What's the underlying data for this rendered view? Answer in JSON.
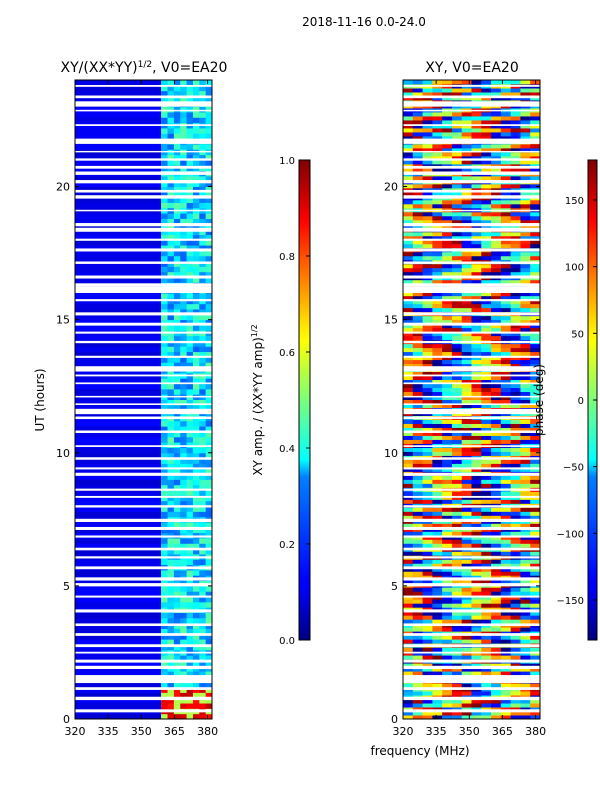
{
  "figure": {
    "suptitle": "2018-11-16 0.0-24.0",
    "shared_xlabel": "frequency (MHz)"
  },
  "chart_data": [
    {
      "type": "heatmap",
      "title_main": "XY/(XX*YY)",
      "title_exp": "1/2",
      "title_suffix": ", V0=EA20",
      "xlabel": "",
      "ylabel": "UT (hours)",
      "xlim": [
        320,
        382
      ],
      "ylim": [
        0,
        24
      ],
      "xticks": [
        "320",
        "335",
        "350",
        "365",
        "380"
      ],
      "xtick_values": [
        320,
        335,
        350,
        365,
        380
      ],
      "yticks": [
        "0",
        "5",
        "10",
        "15",
        "20"
      ],
      "ytick_values": [
        0,
        5,
        10,
        15,
        20
      ],
      "colormap": "jet",
      "description_values": {
        "low_band_level": 0.05,
        "high_band_start_mhz": 359,
        "high_band_level": 0.35
      },
      "colorbar": {
        "label_main": "XY amp. / (XX*YY amp)",
        "label_exp": "1/2",
        "range": [
          0.0,
          1.0
        ],
        "ticks": [
          "0.0",
          "0.2",
          "0.4",
          "0.6",
          "0.8",
          "1.0"
        ],
        "tick_values": [
          0.0,
          0.2,
          0.4,
          0.6,
          0.8,
          1.0
        ]
      }
    },
    {
      "type": "heatmap",
      "title": "XY, V0=EA20",
      "xlabel": "frequency (MHz)",
      "ylabel": "",
      "xlim": [
        320,
        382
      ],
      "ylim": [
        0,
        24
      ],
      "xticks": [
        "320",
        "335",
        "350",
        "365",
        "380"
      ],
      "xtick_values": [
        320,
        335,
        350,
        365,
        380
      ],
      "yticks": [
        "0",
        "5",
        "10",
        "15",
        "20"
      ],
      "ytick_values": [
        0,
        5,
        10,
        15,
        20
      ],
      "colormap": "jet",
      "colorbar": {
        "label": "phase (deg)",
        "range": [
          -180,
          180
        ],
        "ticks": [
          "−150",
          "−100",
          "−50",
          "0",
          "50",
          "100",
          "150"
        ],
        "tick_values": [
          -150,
          -100,
          -50,
          0,
          50,
          100,
          150
        ]
      }
    }
  ]
}
